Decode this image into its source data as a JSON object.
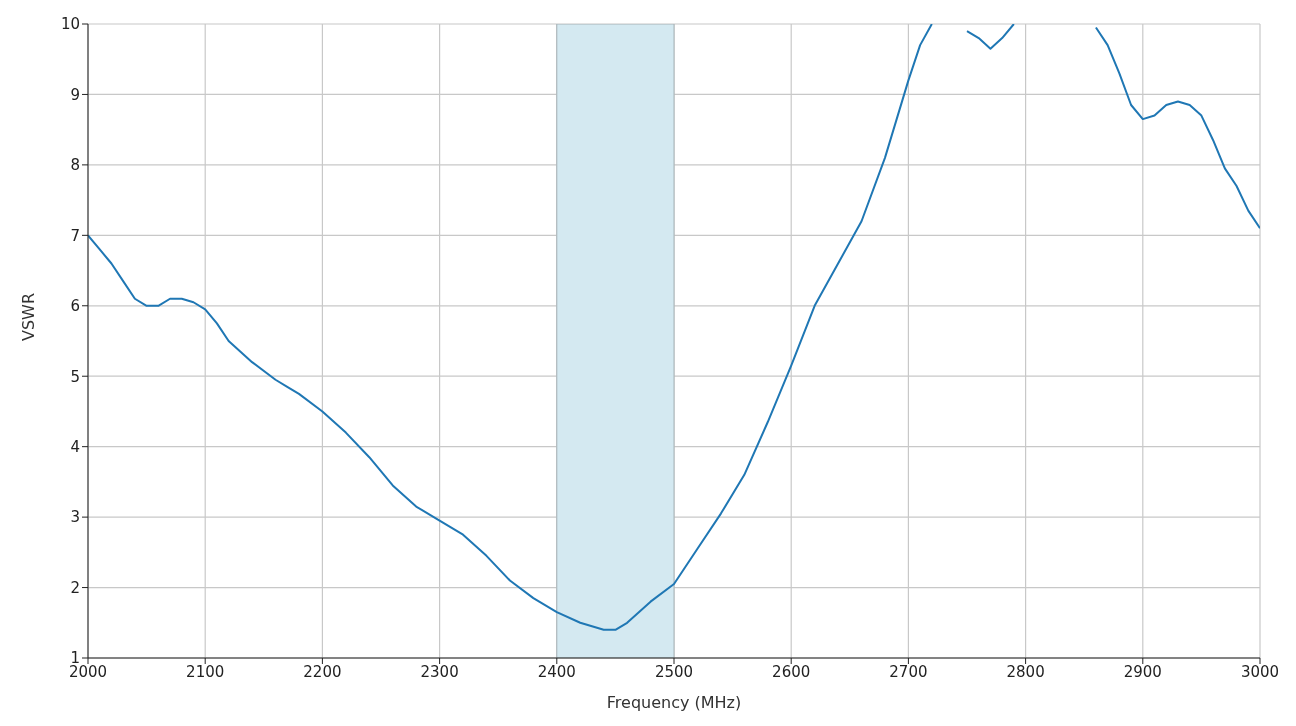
{
  "chart_data": {
    "type": "line",
    "xlabel": "Frequency (MHz)",
    "ylabel": "VSWR",
    "x": [
      2000,
      2010,
      2020,
      2030,
      2040,
      2050,
      2060,
      2070,
      2080,
      2090,
      2100,
      2110,
      2120,
      2140,
      2160,
      2170,
      2180,
      2200,
      2220,
      2240,
      2260,
      2280,
      2300,
      2320,
      2340,
      2360,
      2380,
      2400,
      2420,
      2440,
      2450,
      2460,
      2470,
      2480,
      2500,
      2520,
      2540,
      2560,
      2580,
      2600,
      2620,
      2640,
      2660,
      2680,
      2700,
      2710,
      2720,
      2730,
      2740,
      2750,
      2760,
      2770,
      2780,
      2790,
      2800,
      2820,
      2840,
      2860,
      2870,
      2880,
      2890,
      2900,
      2910,
      2920,
      2930,
      2940,
      2950,
      2960,
      2970,
      2980,
      2990,
      3000
    ],
    "series": [
      {
        "color": "#1f77b4",
        "values": [
          7.0,
          6.8,
          6.6,
          6.35,
          6.1,
          6.0,
          6.0,
          6.1,
          6.1,
          6.05,
          5.95,
          5.75,
          5.5,
          5.2,
          4.95,
          4.85,
          4.75,
          4.5,
          4.2,
          3.85,
          3.45,
          3.15,
          2.95,
          2.75,
          2.45,
          2.1,
          1.85,
          1.65,
          1.5,
          1.4,
          1.4,
          1.5,
          1.65,
          1.8,
          2.05,
          2.55,
          3.05,
          3.6,
          4.35,
          5.15,
          6.0,
          6.6,
          7.2,
          8.1,
          9.2,
          9.7,
          10,
          null,
          null,
          9.9,
          9.8,
          9.65,
          9.8,
          10,
          null,
          null,
          null,
          9.95,
          9.7,
          9.3,
          8.85,
          8.65,
          8.7,
          8.85,
          8.9,
          8.85,
          8.7,
          8.35,
          7.95,
          7.7,
          7.35,
          7.1
        ]
      }
    ],
    "xlim": [
      2000,
      3000
    ],
    "xticks": [
      2000,
      2100,
      2200,
      2300,
      2400,
      2500,
      2600,
      2700,
      2800,
      2900,
      3000
    ],
    "ylim": [
      1,
      10
    ],
    "yticks": [
      1,
      2,
      3,
      4,
      5,
      6,
      7,
      8,
      9,
      10
    ],
    "bands": [
      {
        "axis": "x",
        "from": 2400,
        "to": 2500,
        "color": "#d4e9f1"
      }
    ],
    "grid": true,
    "marker": "none",
    "line_style": "solid"
  }
}
